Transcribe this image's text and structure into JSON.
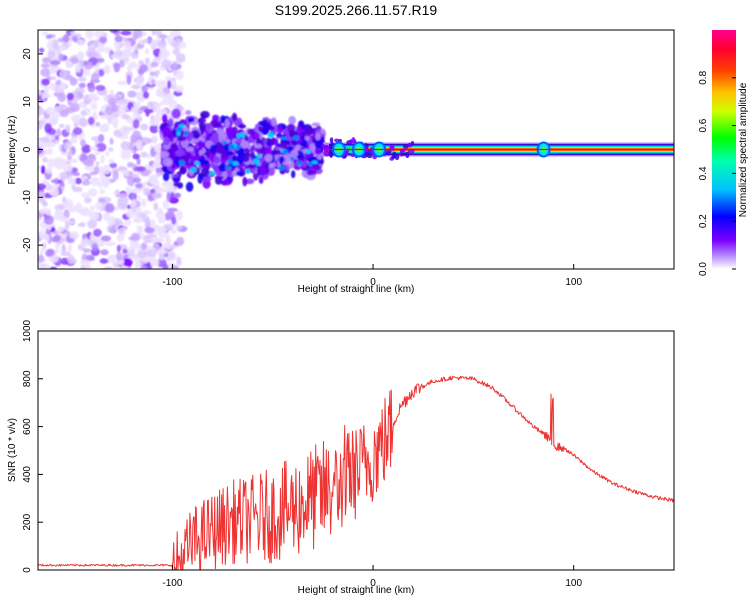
{
  "title": "S199.2025.266.11.57.R19",
  "chart_data": [
    {
      "type": "heatmap",
      "panel": "spectrogram",
      "xlabel": "Height of straight line (km)",
      "ylabel": "Frequency (Hz)",
      "xlim": [
        -167,
        150
      ],
      "ylim": [
        -25,
        25
      ],
      "xticks": [
        "-100",
        "0",
        "100"
      ],
      "yticks": [
        "20",
        "10",
        "0",
        "-10",
        "-20"
      ],
      "colorbar": {
        "label": "Normalized spectral amplitude",
        "range": [
          0,
          1
        ],
        "ticks": [
          "0.0",
          "0.2",
          "0.4",
          "0.6",
          "0.8"
        ],
        "colors": [
          "#ffffff",
          "#7b00ff",
          "#0000ff",
          "#00ffff",
          "#00ff00",
          "#ffff00",
          "#ff7f00",
          "#ff0000",
          "#ff0080"
        ]
      },
      "features": {
        "noise_region_km": [
          -167,
          -105
        ],
        "blob_region_km": [
          -105,
          -25
        ],
        "signal_line_start_km": -25,
        "signal_line_freq_hz": 0,
        "bright_spots_km": [
          -17,
          -7,
          3,
          85
        ]
      }
    },
    {
      "type": "line",
      "panel": "snr",
      "xlabel": "Height of straight line (km)",
      "ylabel": "SNR (10 * v/v)",
      "xlim": [
        -167,
        150
      ],
      "ylim": [
        0,
        1000
      ],
      "xticks": [
        "-100",
        "0",
        "100"
      ],
      "yticks": [
        "0",
        "200",
        "400",
        "600",
        "800",
        "1000"
      ],
      "color": "#ee3333",
      "series": [
        {
          "name": "SNR",
          "x": [
            -167,
            -120,
            -100,
            -95,
            -90,
            -80,
            -70,
            -60,
            -50,
            -40,
            -30,
            -20,
            -15,
            -13,
            -10,
            -5,
            0,
            5,
            10,
            15,
            20,
            30,
            40,
            50,
            60,
            70,
            80,
            88,
            90,
            95,
            100,
            110,
            120,
            130,
            140,
            150
          ],
          "y": [
            20,
            20,
            20,
            60,
            130,
            180,
            220,
            230,
            250,
            280,
            320,
            360,
            380,
            400,
            420,
            450,
            500,
            550,
            620,
            700,
            750,
            790,
            805,
            800,
            760,
            680,
            600,
            550,
            520,
            510,
            480,
            410,
            360,
            330,
            305,
            290
          ]
        }
      ]
    }
  ]
}
